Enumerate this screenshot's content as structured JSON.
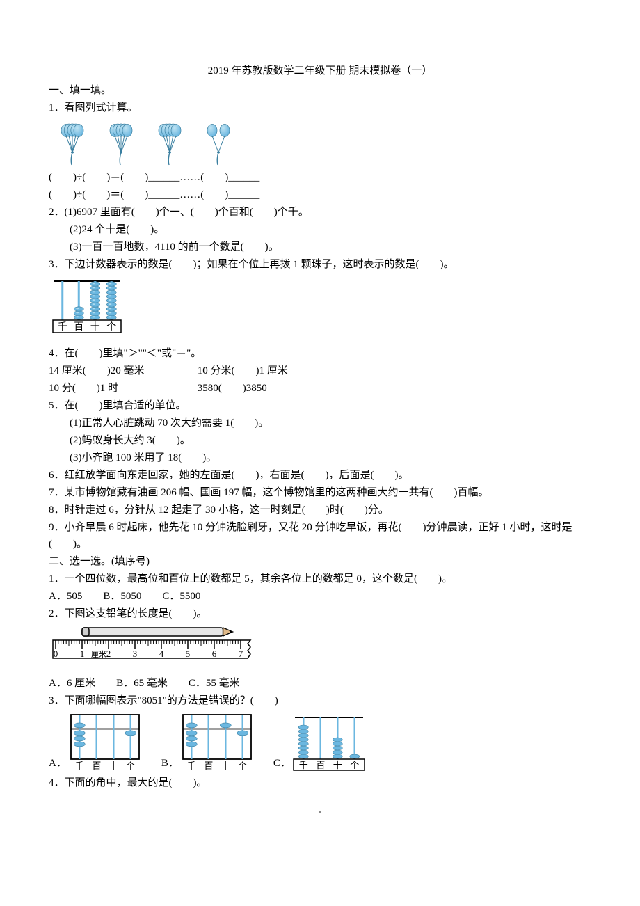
{
  "title": "2019 年苏教版数学二年级下册 期末模拟卷（一）",
  "sec1": {
    "heading": "一、填一填。",
    "q1": {
      "stem": "1．看图列式计算。",
      "balloons": {
        "bunches": [
          5,
          5,
          5,
          2
        ],
        "balloon_color": "#6bb7e0",
        "balloon_gradient_light": "#bfe3f2",
        "stem_color": "#3a7fa0"
      },
      "line1": "(　　)÷(　　)＝(　　)______……(　　)______",
      "line2": "(　　)÷(　　)＝(　　)______……(　　)______"
    },
    "q2": {
      "stem": "2．(1)6907 里面有(　　)个一、(　　)个百和(　　)个千。",
      "p2": "(2)24 个十是(　　)。",
      "p3": "(3)一百一百地数，4110 的前一个数是(　　)。"
    },
    "q3": {
      "stem": "3．下边计数器表示的数是(　　)；如果在个位上再拨 1 颗珠子，这时表示的数是(　　)。",
      "abacus": {
        "columns": [
          "千",
          "百",
          "十",
          "个"
        ],
        "beads": [
          0,
          3,
          9,
          9
        ],
        "rod_color": "#6bb7e0",
        "bead_color": "#6bb7e0",
        "bead_light": "#bfe3f2",
        "frame_color": "#000000",
        "label_bg": "#ffffff"
      }
    },
    "q4": {
      "stem": "4．在(　　)里填\"＞\"\"＜\"或\"＝\"。",
      "row1a": "14 厘米(　　)20 毫米",
      "row1b": "10 分米(　　)1 厘米",
      "row2a": "10 分(　　)1 时",
      "row2b": "3580(　　)3850"
    },
    "q5": {
      "stem": "5．在(　　)里填合适的单位。",
      "p1": "(1)正常人心脏跳动 70 次大约需要 1(　　)。",
      "p2": "(2)蚂蚁身长大约 3(　　)。",
      "p3": "(3)小齐跑 100 米用了 18(　　)。"
    },
    "q6": "6．红红放学面向东走回家，她的左面是(　　)，右面是(　　)，后面是(　　)。",
    "q7": "7．某市博物馆藏有油画 206 幅、国画 197 幅，这个博物馆里的这两种画大约一共有(　　)百幅。",
    "q8": "8．时针走过 6，分针从 12 起走了 30 小格，这一时刻是(　　)时(　　)分。",
    "q9": "9．小齐早晨 6 时起床，他先花 10 分钟洗脸刷牙，又花 20 分钟吃早饭，再花(　　)分钟晨读，正好 1 小时，这时是(　　)。"
  },
  "sec2": {
    "heading": "二、选一选。(填序号)",
    "q1": {
      "stem": "1．一个四位数，最高位和百位上的数都是 5，其余各位上的数都是 0，这个数是(　　)。",
      "opts": "A．505　　B．5050　　C．5500"
    },
    "q2": {
      "stem": "2．下图这支铅笔的长度是(　　)。",
      "ruler": {
        "ticks": [
          "0",
          "1",
          "2",
          "3",
          "4",
          "5",
          "6",
          "7"
        ],
        "unit_after_one": "厘米",
        "pencil_start": 1,
        "pencil_end": 6.7,
        "pencil_body": "#e6e6e6",
        "pencil_tip": "#000000",
        "ruler_stroke": "#000000"
      },
      "opts": "A．6 厘米　　B．65 毫米　　C．55 毫米"
    },
    "q3": {
      "stem": "3．下面哪幅图表示\"8051\"的方法是错误的？(　　)",
      "abacus_labels": [
        "千",
        "百",
        "十",
        "个"
      ],
      "style": {
        "rod_color": "#6bb7e0",
        "bead_color": "#6bb7e0",
        "bead_light": "#bfe3f2",
        "frame_color": "#000000"
      },
      "optA": {
        "label": "A．",
        "upper": [
          1,
          0,
          0,
          0
        ],
        "lower": [
          3,
          0,
          0,
          1
        ]
      },
      "optB": {
        "label": "B．",
        "upper": [
          1,
          0,
          1,
          0
        ],
        "lower": [
          3,
          0,
          0,
          1
        ]
      },
      "optC": {
        "label": "C．",
        "upper": [
          0,
          0,
          0,
          0
        ],
        "lower": [
          8,
          0,
          5,
          1
        ]
      }
    },
    "q4": "4．下面的角中，最大的是(　　)。"
  },
  "page_mark": "▪"
}
